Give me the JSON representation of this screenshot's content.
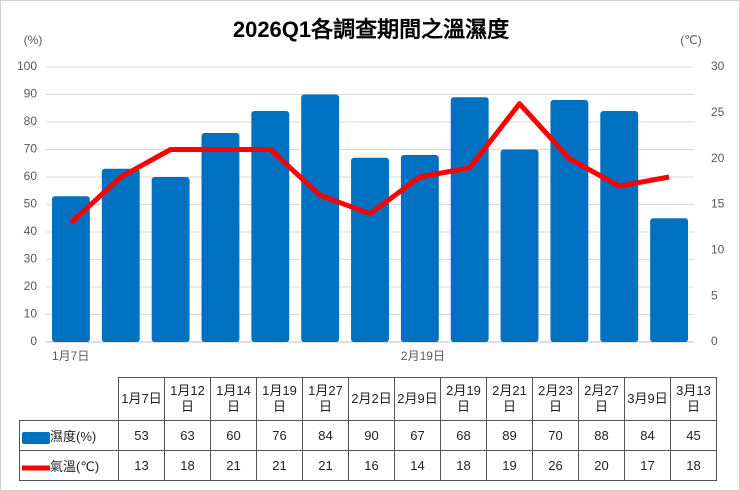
{
  "chart_data": {
    "type": "bar",
    "title": "2026Q1各調查期間之溫濕度",
    "y_label": "(%)",
    "y2_label": "(℃)",
    "categories": [
      "1月7日",
      "1月12日",
      "1月14日",
      "1月19日",
      "1月27日",
      "2月2日",
      "2月9日",
      "2月19日",
      "2月21日",
      "2月23日",
      "2月27日",
      "3月9日",
      "3月13日"
    ],
    "series": [
      {
        "name": "濕度(%)",
        "type": "bar",
        "color": "#0070c0",
        "values": [
          53,
          63,
          60,
          76,
          84,
          90,
          67,
          68,
          89,
          70,
          88,
          84,
          45
        ]
      },
      {
        "name": "氣溫(℃)",
        "type": "line",
        "axis": "y2",
        "color": "#ff0000",
        "values": [
          13,
          18,
          21,
          21,
          21,
          16,
          14,
          18,
          19,
          26,
          20,
          17,
          18
        ]
      }
    ],
    "ylim": [
      0,
      100
    ],
    "yticks": [
      0,
      10,
      20,
      30,
      40,
      50,
      60,
      70,
      80,
      90,
      100
    ],
    "y2lim": [
      0,
      30
    ],
    "y2ticks": [
      0,
      5,
      10,
      15,
      20,
      25,
      30
    ],
    "grid": true
  }
}
